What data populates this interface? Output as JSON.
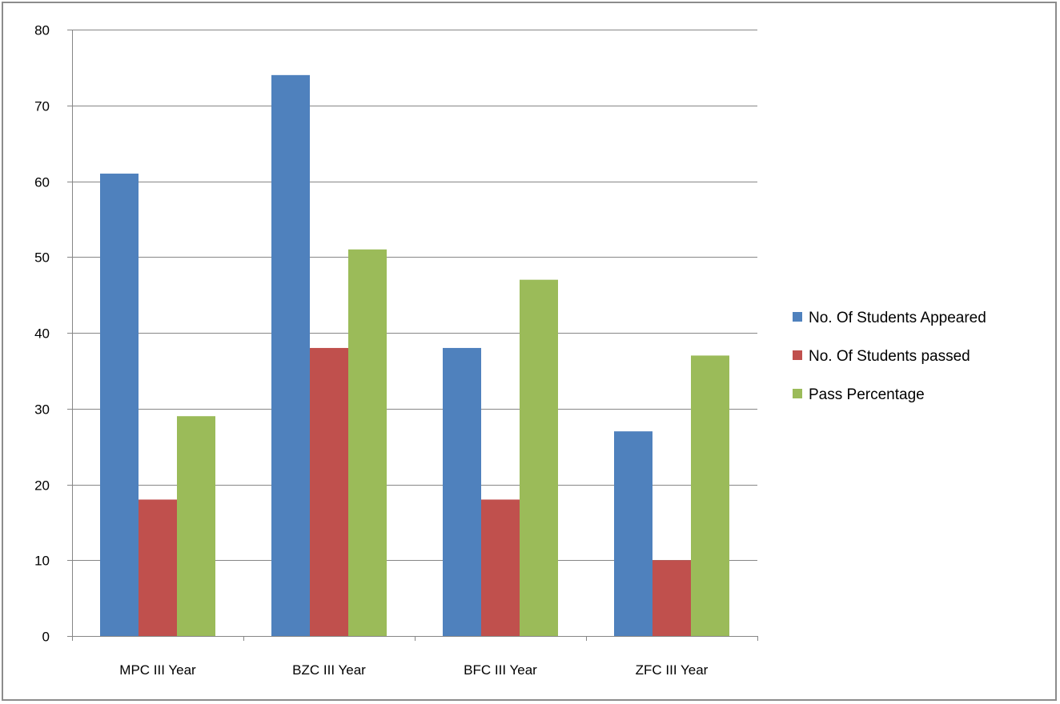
{
  "chart_data": {
    "type": "bar",
    "categories": [
      "MPC III Year",
      "BZC III Year",
      "BFC III Year",
      "ZFC III Year"
    ],
    "series": [
      {
        "name": "No. Of Students Appeared",
        "values": [
          61,
          74,
          38,
          27
        ],
        "color": "#4f81bd"
      },
      {
        "name": "No. Of Students passed",
        "values": [
          18,
          38,
          18,
          10
        ],
        "color": "#c0504d"
      },
      {
        "name": "Pass Percentage",
        "values": [
          29,
          51,
          47,
          37
        ],
        "color": "#9bbb59"
      }
    ],
    "ylim": [
      0,
      80
    ],
    "yticks": [
      0,
      10,
      20,
      30,
      40,
      50,
      60,
      70,
      80
    ],
    "grid": true,
    "legend_position": "right"
  }
}
